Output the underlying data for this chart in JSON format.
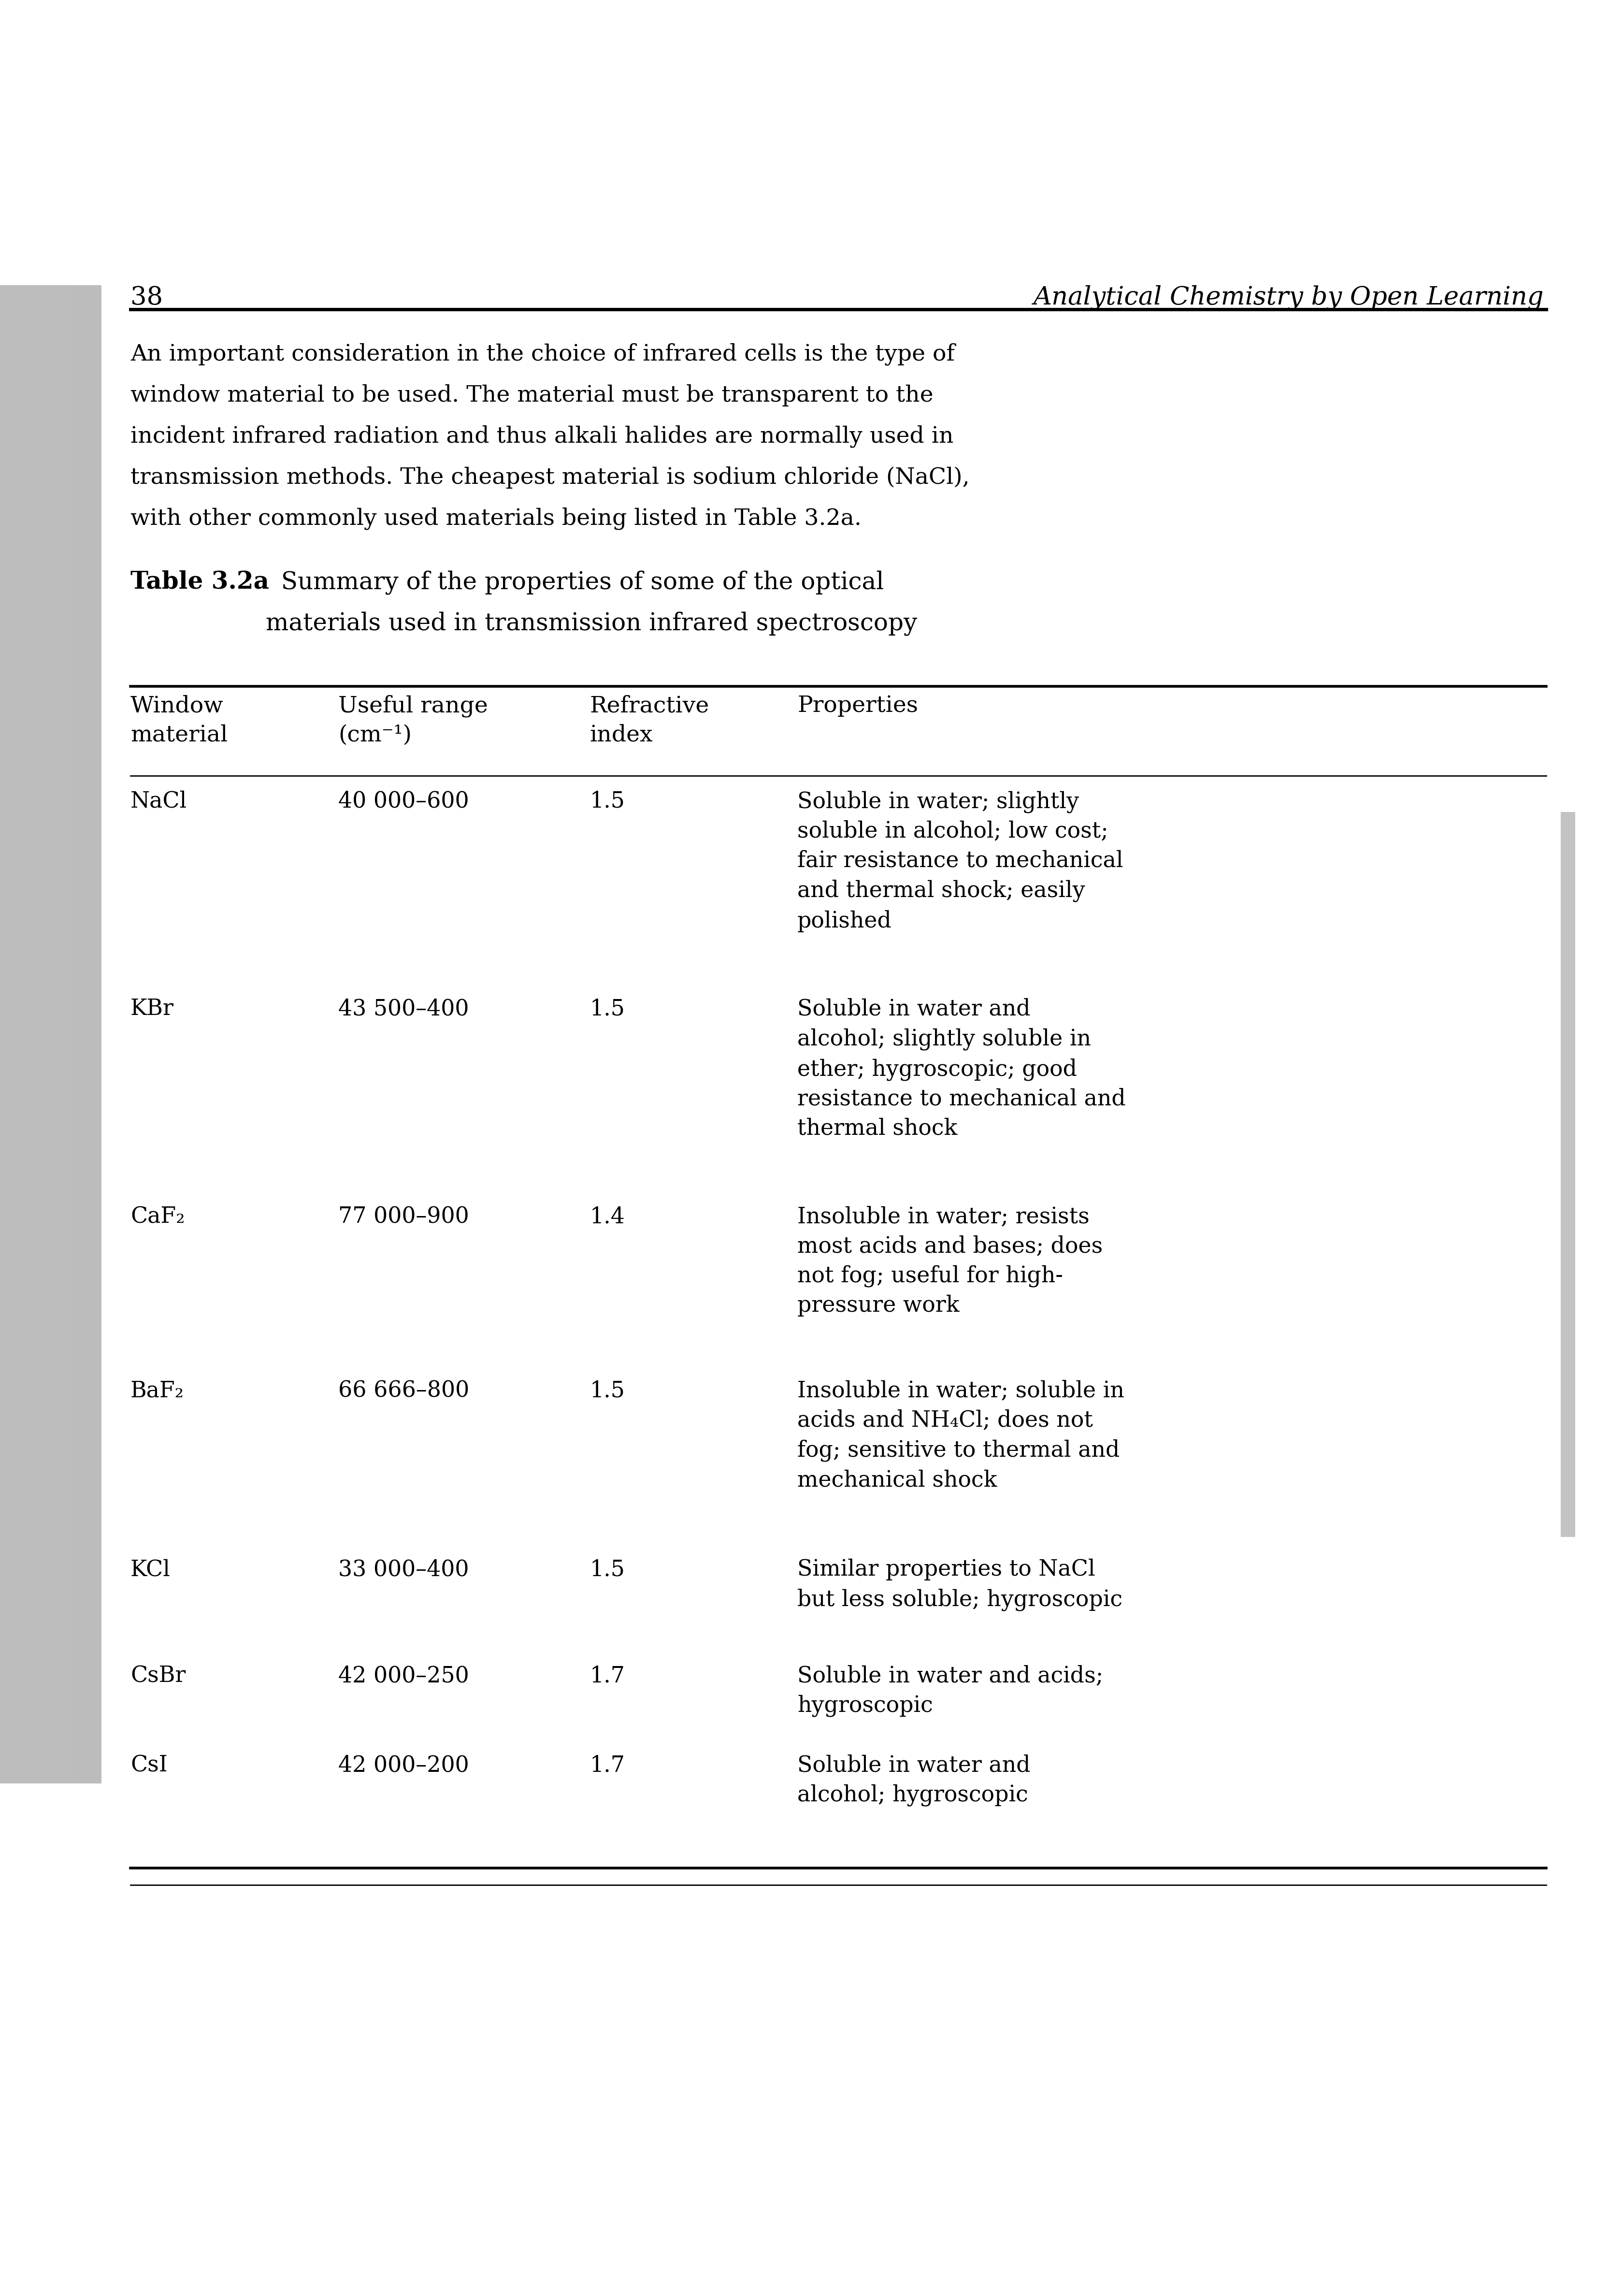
{
  "page_number": "38",
  "header_title": "Analytical Chemistry by Open Learning",
  "body_text": [
    "An important consideration in the choice of infrared cells is the type of",
    "window material to be used. The material must be transparent to the",
    "incident infrared radiation and thus alkali halides are normally used in",
    "transmission methods. The cheapest material is sodium chloride (NaCl),",
    "with other commonly used materials being listed in Table 3.2a."
  ],
  "table_title_bold": "Table 3.2a",
  "table_title_rest": "  Summary of the properties of some of the optical",
  "table_title_line2": "materials used in transmission infrared spectroscopy",
  "col_headers_line1": [
    "Window",
    "Useful range",
    "Refractive",
    "Properties"
  ],
  "col_headers_line2": [
    "material",
    "(cm⁻¹)",
    "index",
    ""
  ],
  "rows": [
    {
      "material": "NaCl",
      "range": "40 000–600",
      "ri": "1.5",
      "properties": "Soluble in water; slightly\nsoluble in alcohol; low cost;\nfair resistance to mechanical\nand thermal shock; easily\npolished"
    },
    {
      "material": "KBr",
      "range": "43 500–400",
      "ri": "1.5",
      "properties": "Soluble in water and\nalcohol; slightly soluble in\nether; hygroscopic; good\nresistance to mechanical and\nthermal shock"
    },
    {
      "material": "CaF₂",
      "range": "77 000–900",
      "ri": "1.4",
      "properties": "Insoluble in water; resists\nmost acids and bases; does\nnot fog; useful for high-\npressure work"
    },
    {
      "material": "BaF₂",
      "range": "66 666–800",
      "ri": "1.5",
      "properties": "Insoluble in water; soluble in\nacids and NH₄Cl; does not\nfog; sensitive to thermal and\nmechanical shock"
    },
    {
      "material": "KCl",
      "range": "33 000–400",
      "ri": "1.5",
      "properties": "Similar properties to NaCl\nbut less soluble; hygroscopic"
    },
    {
      "material": "CsBr",
      "range": "42 000–250",
      "ri": "1.7",
      "properties": "Soluble in water and acids;\nhygroscopic"
    },
    {
      "material": "CsI",
      "range": "42 000–200",
      "ri": "1.7",
      "properties": "Soluble in water and\nalcohol; hygroscopic"
    }
  ],
  "bg_color": "#ffffff",
  "text_color": "#000000"
}
